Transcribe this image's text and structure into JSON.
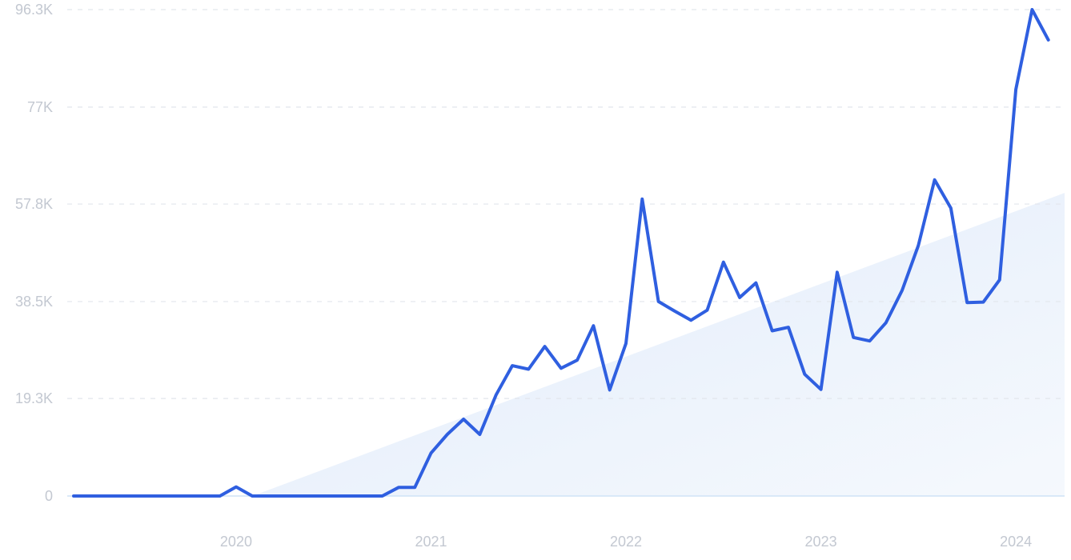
{
  "chart_data": {
    "type": "line",
    "title": "",
    "xlabel": "",
    "ylabel": "",
    "x_tick_labels": [
      "2020",
      "2021",
      "2022",
      "2023",
      "2024"
    ],
    "y_tick_labels": [
      "0",
      "19.3K",
      "38.5K",
      "57.8K",
      "77K",
      "96.3K"
    ],
    "y_tick_values": [
      0,
      19300,
      38500,
      57800,
      77000,
      96300
    ],
    "ylim": [
      0,
      96300
    ],
    "xlim": [
      "2019-03",
      "2024-04"
    ],
    "grid": "horizontal dashed",
    "series": [
      {
        "color": "#2f5fe0",
        "x": [
          "2019-03",
          "2019-04",
          "2019-05",
          "2019-06",
          "2019-07",
          "2019-08",
          "2019-09",
          "2019-10",
          "2019-11",
          "2019-12",
          "2020-01",
          "2020-02",
          "2020-03",
          "2020-04",
          "2020-05",
          "2020-06",
          "2020-07",
          "2020-08",
          "2020-09",
          "2020-10",
          "2020-11",
          "2020-12",
          "2021-01",
          "2021-02",
          "2021-03",
          "2021-04",
          "2021-05",
          "2021-06",
          "2021-07",
          "2021-08",
          "2021-09",
          "2021-10",
          "2021-11",
          "2021-12",
          "2022-01",
          "2022-02",
          "2022-03",
          "2022-04",
          "2022-05",
          "2022-06",
          "2022-07",
          "2022-08",
          "2022-09",
          "2022-10",
          "2022-11",
          "2022-12",
          "2023-01",
          "2023-02",
          "2023-03",
          "2023-04",
          "2023-05",
          "2023-06",
          "2023-07",
          "2023-08",
          "2023-09",
          "2023-10",
          "2023-11",
          "2023-12",
          "2024-01",
          "2024-02",
          "2024-03"
        ],
        "values": [
          0,
          0,
          0,
          0,
          0,
          0,
          0,
          0,
          0,
          0,
          1800,
          0,
          0,
          0,
          0,
          0,
          0,
          0,
          0,
          0,
          1700,
          1700,
          8500,
          12200,
          15200,
          12200,
          20000,
          25800,
          25100,
          29600,
          25300,
          26900,
          33700,
          21000,
          30200,
          58800,
          38500,
          36600,
          34800,
          36800,
          46300,
          39300,
          42200,
          32700,
          33400,
          24100,
          21100,
          44300,
          31400,
          30700,
          34300,
          40700,
          49600,
          62600,
          57000,
          38300,
          38400,
          42800,
          80500,
          96300,
          90300
        ]
      }
    ],
    "trend": {
      "color": "#dce9fa",
      "x": [
        "2020-02",
        "2024-04"
      ],
      "values": [
        0,
        60000
      ]
    }
  }
}
